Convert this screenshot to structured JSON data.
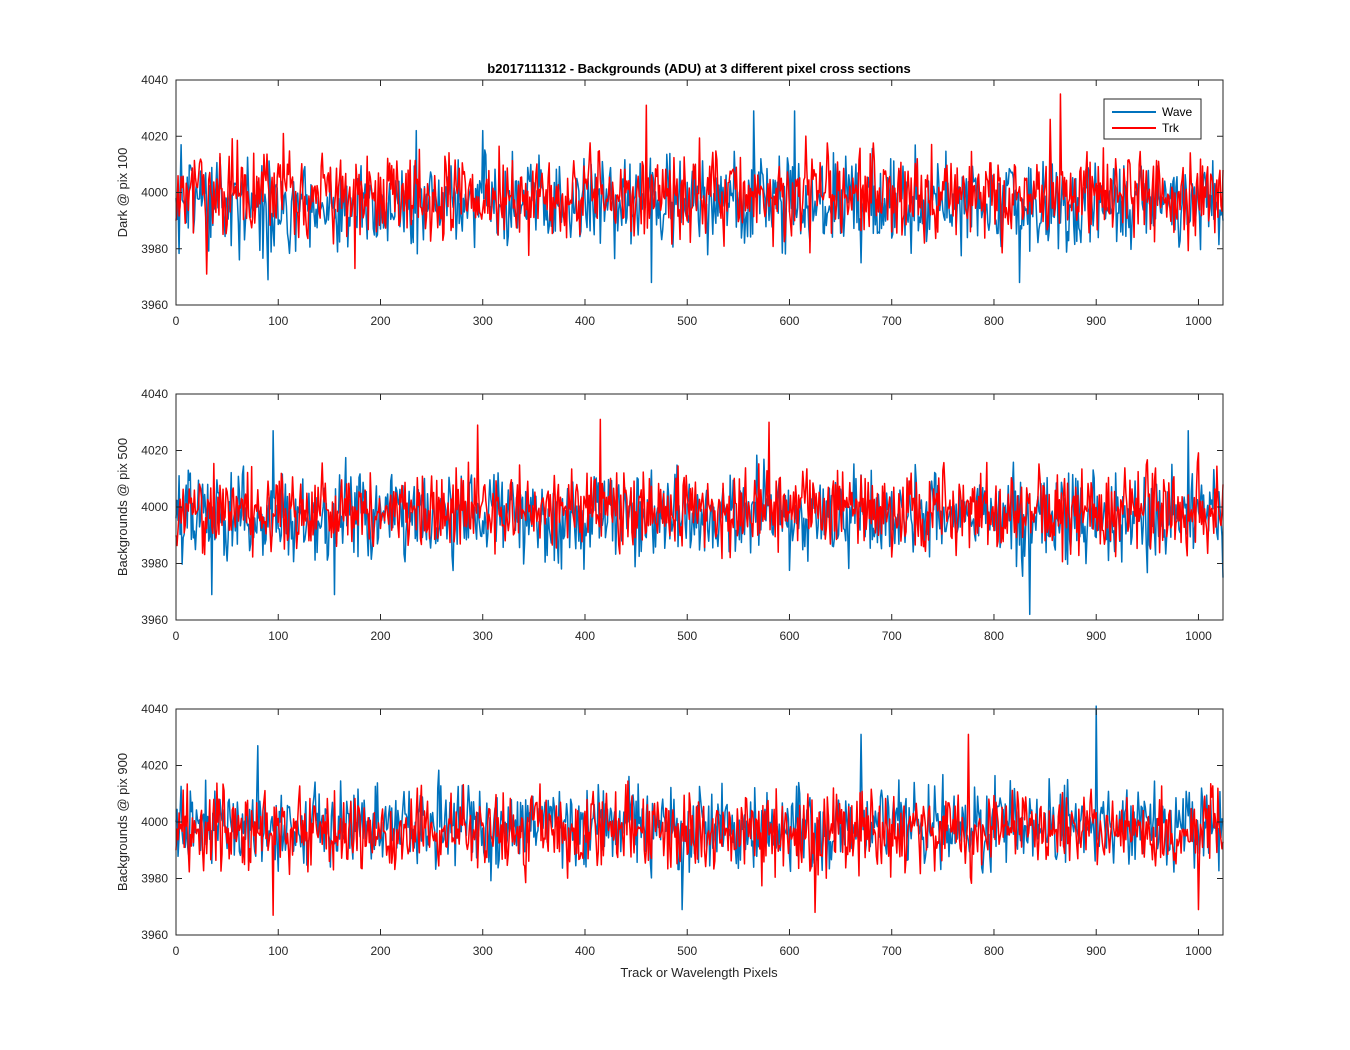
{
  "figure": {
    "title": "b2017111312 - Backgrounds (ADU) at 3 different pixel cross sections",
    "xlabel": "Track or Wavelength Pixels"
  },
  "legend": {
    "entries": [
      "Wave",
      "Trk"
    ],
    "placement": "top-right of first subplot"
  },
  "chart_data": [
    {
      "type": "line",
      "title": "b2017111312 - Backgrounds (ADU) at 3 different pixel cross sections",
      "xlabel": "",
      "ylabel": "Dark @ pix 100",
      "xlim": [
        0,
        1024
      ],
      "ylim": [
        3960,
        4040
      ],
      "xticks": [
        0,
        100,
        200,
        300,
        400,
        500,
        600,
        700,
        800,
        900,
        1000
      ],
      "yticks": [
        3960,
        3980,
        4000,
        4020,
        4040
      ],
      "grid": false,
      "legend": "top-right",
      "series": [
        {
          "name": "Wave",
          "color": "#0072BD",
          "pattern": "noise around 3996 ADU, amplitude ~±12, extremes 3968–4029",
          "points": [
            [
              0,
              3998
            ],
            [
              5,
              4017
            ],
            [
              90,
              3969
            ],
            [
              235,
              4022
            ],
            [
              300,
              4022
            ],
            [
              465,
              3968
            ],
            [
              565,
              4029
            ],
            [
              605,
              4029
            ],
            [
              670,
              3975
            ],
            [
              825,
              3968
            ],
            [
              1024,
              3990
            ]
          ]
        },
        {
          "name": "Trk",
          "color": "#FF0000",
          "pattern": "noise around 3999 ADU, amplitude ~±12, extremes 3971–4035",
          "points": [
            [
              0,
              3990
            ],
            [
              30,
              3971
            ],
            [
              105,
              4021
            ],
            [
              175,
              3973
            ],
            [
              460,
              4031
            ],
            [
              855,
              4026
            ],
            [
              865,
              4035
            ],
            [
              1024,
              4008
            ]
          ]
        }
      ]
    },
    {
      "type": "line",
      "xlabel": "",
      "ylabel": "Backgrounds @ pix 500",
      "xlim": [
        0,
        1024
      ],
      "ylim": [
        3960,
        4040
      ],
      "xticks": [
        0,
        100,
        200,
        300,
        400,
        500,
        600,
        700,
        800,
        900,
        1000
      ],
      "yticks": [
        3960,
        3980,
        4000,
        4020,
        4040
      ],
      "grid": false,
      "series": [
        {
          "name": "Wave",
          "color": "#0072BD",
          "pattern": "noise around 3997 ADU, amplitude ~±12, extremes 3962–4027",
          "points": [
            [
              0,
              3996
            ],
            [
              35,
              3969
            ],
            [
              95,
              4027
            ],
            [
              155,
              3969
            ],
            [
              835,
              3962
            ],
            [
              990,
              4027
            ],
            [
              1024,
              3975
            ]
          ]
        },
        {
          "name": "Trk",
          "color": "#FF0000",
          "pattern": "noise around 3999 ADU, amplitude ~±12, extremes 3972–4031",
          "points": [
            [
              0,
              3990
            ],
            [
              295,
              4029
            ],
            [
              415,
              4031
            ],
            [
              580,
              4030
            ],
            [
              1024,
              4008
            ]
          ]
        }
      ]
    },
    {
      "type": "line",
      "xlabel": "Track or Wavelength Pixels",
      "ylabel": "Backgrounds @ pix 900",
      "xlim": [
        0,
        1024
      ],
      "ylim": [
        3960,
        4040
      ],
      "xticks": [
        0,
        100,
        200,
        300,
        400,
        500,
        600,
        700,
        800,
        900,
        1000
      ],
      "yticks": [
        3960,
        3980,
        4000,
        4020,
        4040
      ],
      "grid": false,
      "series": [
        {
          "name": "Wave",
          "color": "#0072BD",
          "pattern": "noise around 3999 ADU, amplitude ~±12, extremes 3969–4041",
          "points": [
            [
              0,
              4000
            ],
            [
              80,
              4027
            ],
            [
              495,
              3969
            ],
            [
              670,
              4031
            ],
            [
              900,
              4041
            ],
            [
              1024,
              4000
            ]
          ]
        },
        {
          "name": "Trk",
          "color": "#FF0000",
          "pattern": "noise around 3997 ADU, amplitude ~±11, extremes 3967–4031",
          "points": [
            [
              0,
              3990
            ],
            [
              95,
              3967
            ],
            [
              625,
              3968
            ],
            [
              775,
              4031
            ],
            [
              1000,
              3969
            ],
            [
              1024,
              3993
            ]
          ]
        }
      ]
    }
  ]
}
